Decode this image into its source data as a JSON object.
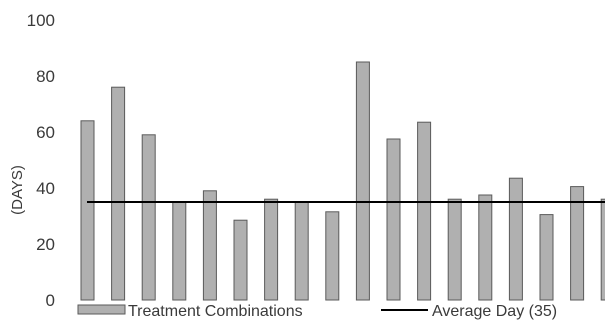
{
  "chart_data": {
    "type": "bar",
    "ylabel": "(DAYS)",
    "ylim": [
      0,
      100
    ],
    "yticks": [
      "0",
      "20",
      "40",
      "60",
      "80",
      "100"
    ],
    "values": [
      64,
      76,
      59,
      35,
      39,
      28.5,
      36,
      35,
      31.5,
      85,
      57.5,
      63.5,
      36,
      37.5,
      43.5,
      30.5,
      40.5,
      36
    ],
    "average": 35,
    "legend": {
      "bars": "Treatment Combinations",
      "line": "Average Day (35)",
      "position": "bottom"
    },
    "colors": {
      "bar_fill": "#b0b0b0",
      "bar_edge": "#5a5a5a",
      "avg_line": "#000000"
    }
  }
}
